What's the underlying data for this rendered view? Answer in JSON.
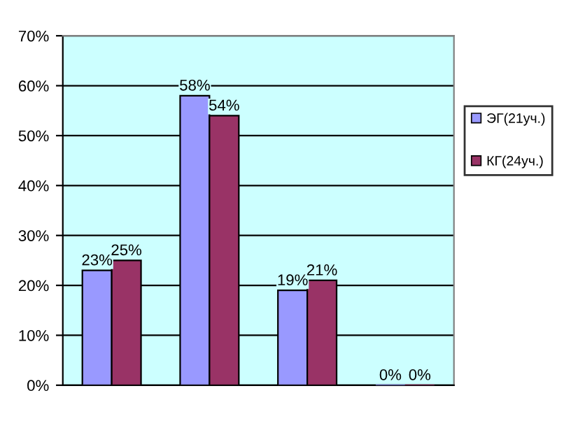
{
  "chart_data": {
    "type": "bar",
    "categories": [
      null,
      null,
      null,
      null
    ],
    "series": [
      {
        "name": "ЭГ(21уч.)",
        "color": "#9999ff",
        "values": [
          23,
          58,
          19,
          0
        ],
        "value_labels": [
          "23%",
          "58%",
          "19%",
          "0%"
        ]
      },
      {
        "name": "КГ(24уч.)",
        "color": "#993366",
        "values": [
          25,
          54,
          21,
          0
        ],
        "value_labels": [
          "25%",
          "54%",
          "21%",
          "0%"
        ]
      }
    ],
    "ylim": [
      0,
      70
    ],
    "yticks": [
      {
        "value": 0,
        "label": "0%"
      },
      {
        "value": 10,
        "label": "10%"
      },
      {
        "value": 20,
        "label": "20%"
      },
      {
        "value": 30,
        "label": "30%"
      },
      {
        "value": 40,
        "label": "40%"
      },
      {
        "value": 50,
        "label": "50%"
      },
      {
        "value": 60,
        "label": "60%"
      },
      {
        "value": 70,
        "label": "70%"
      }
    ],
    "grid": "y",
    "legend": "right"
  }
}
